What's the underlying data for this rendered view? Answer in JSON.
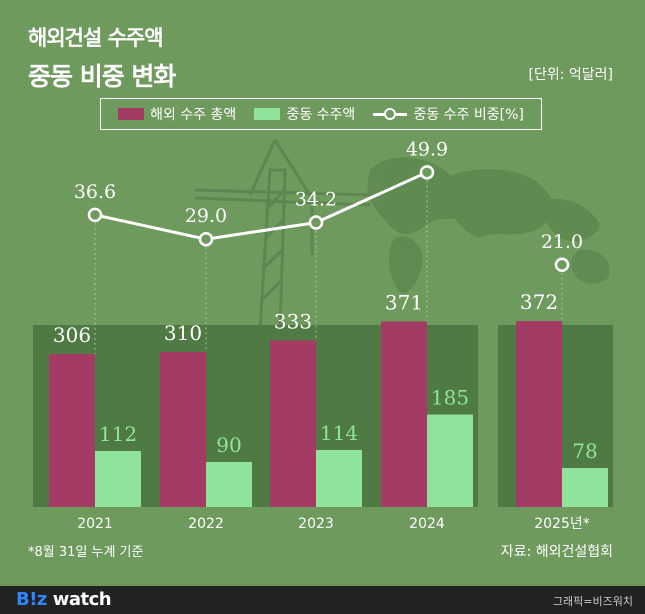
{
  "header": {
    "title_line1": "해외건설 수주액",
    "title_line2": "중동 비중 변화",
    "unit": "[단위: 억달러]"
  },
  "legend": {
    "total_label": "해외 수주 총액",
    "middle_east_label": "중동 수주액",
    "share_label": "중동 수주 비중[%]"
  },
  "footer": {
    "note": "*8월 31일 누계 기준",
    "source": "자료: 해외건설협회",
    "logo_bz": "B!z",
    "logo_watch": "watch",
    "credit": "그래픽=비즈워치"
  },
  "colors": {
    "background": "#6f9a5d",
    "panel": "#4f7a43",
    "total_bar": "#a33b64",
    "middle_east_bar": "#8fe39b",
    "share_line": "#ffffff"
  },
  "chart_data": {
    "type": "bar",
    "categories": [
      "2021",
      "2022",
      "2023",
      "2024",
      "2025년*"
    ],
    "series": [
      {
        "name": "해외 수주 총액",
        "values": [
          306,
          310,
          333,
          371,
          372
        ]
      },
      {
        "name": "중동 수주액",
        "values": [
          112,
          90,
          114,
          185,
          78
        ]
      },
      {
        "name": "중동 수주 비중[%]",
        "type": "line",
        "values": [
          36.6,
          29.0,
          34.2,
          49.9,
          21.0
        ]
      }
    ],
    "share_labels": [
      "36.6",
      "29.0",
      "34.2",
      "49.9",
      "21.0"
    ],
    "ylim": [
      0,
      400
    ],
    "share_ylim": [
      0,
      100
    ],
    "line_connected_through": "2024",
    "legend_position": "top"
  }
}
